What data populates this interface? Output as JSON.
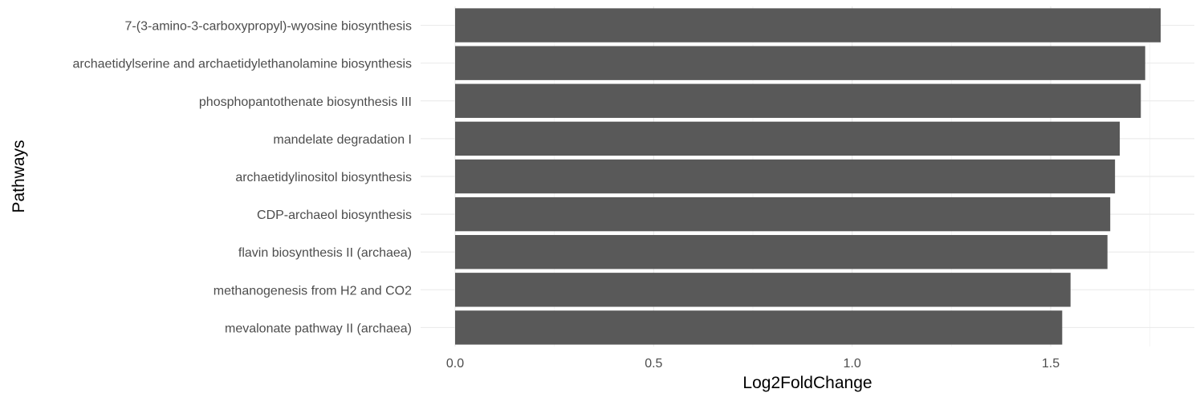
{
  "chart_data": {
    "type": "bar",
    "orientation": "horizontal",
    "title": "",
    "xlabel": "Log2FoldChange",
    "ylabel": "Pathways",
    "xlim": [
      0,
      1.8
    ],
    "x_ticks": [
      0.0,
      0.5,
      1.0,
      1.5
    ],
    "x_tick_labels": [
      "0.0",
      "0.5",
      "1.0",
      "1.5"
    ],
    "categories": [
      "7-(3-amino-3-carboxypropyl)-wyosine biosynthesis",
      "archaetidylserine and archaetidylethanolamine biosynthesis",
      "phosphopantothenate biosynthesis III",
      "mandelate degradation I",
      "archaetidylinositol biosynthesis",
      "CDP-archaeol biosynthesis",
      "flavin biosynthesis II (archaea)",
      "methanogenesis from H2 and CO2",
      "mevalonate pathway II (archaea)"
    ],
    "values": [
      1.777,
      1.738,
      1.727,
      1.674,
      1.662,
      1.65,
      1.643,
      1.55,
      1.529
    ],
    "bar_color": "#595959",
    "grid": true,
    "legend": "none"
  }
}
